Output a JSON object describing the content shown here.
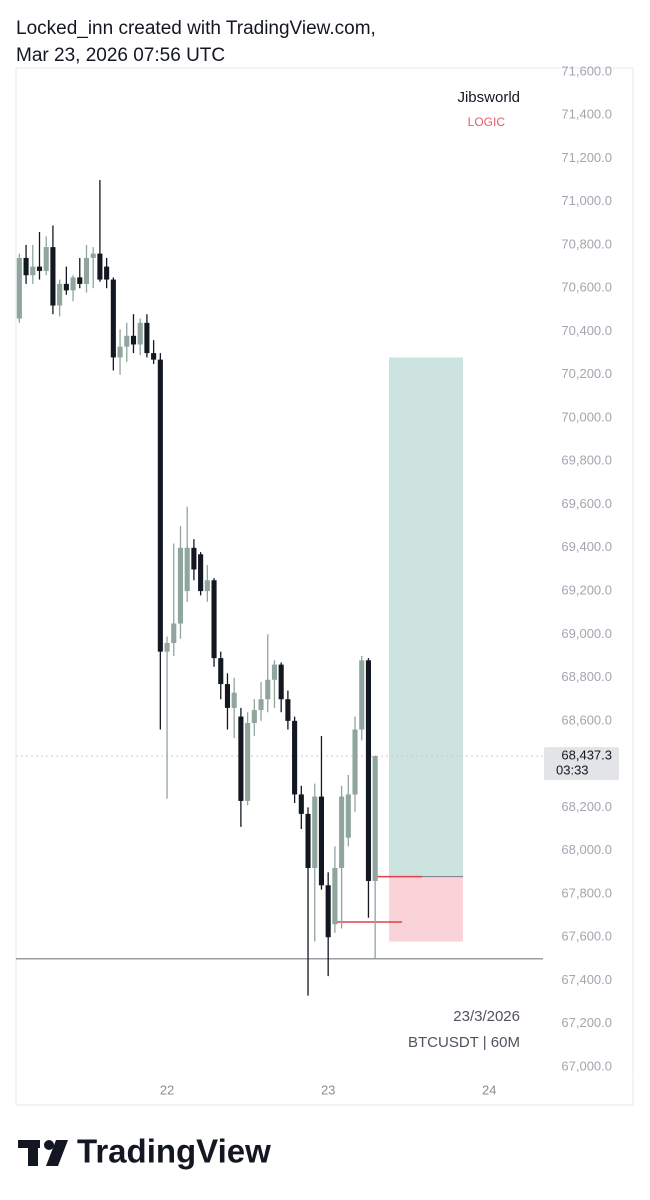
{
  "header": {
    "line1": "Locked_inn created with TradingView.com,",
    "line2": "Mar 23, 2026 07:56 UTC"
  },
  "footer": {
    "brand": "TradingView"
  },
  "chart_data": {
    "type": "candlestick",
    "watermark": {
      "author": "Jibsworld",
      "indicator": "LOGIC",
      "date": "23/3/2026",
      "symbol": "BTCUSDT | 60M"
    },
    "x": [
      -22,
      -21,
      -20,
      -19,
      -18,
      -17,
      -16,
      -15,
      -14,
      -13,
      -12,
      -11,
      -10,
      -9,
      -8,
      -7,
      -6,
      -5,
      -4,
      -3,
      -2,
      -1,
      0,
      1,
      2,
      3,
      4,
      5,
      6,
      7,
      8,
      9,
      10,
      11,
      12,
      13,
      14,
      15,
      16,
      17,
      18,
      19,
      20,
      21,
      22,
      23,
      24,
      25,
      26,
      27,
      28,
      29,
      30,
      31
    ],
    "open": [
      70460,
      70740,
      70660,
      70700,
      70680,
      70790,
      70520,
      70620,
      70590,
      70650,
      70620,
      70740,
      70760,
      70700,
      70640,
      70280,
      70330,
      70380,
      70340,
      70440,
      70300,
      70270,
      68920,
      68960,
      69050,
      69200,
      69400,
      69370,
      69200,
      69250,
      68890,
      68770,
      68660,
      68620,
      68230,
      68590,
      68650,
      68700,
      68790,
      68860,
      68700,
      68600,
      68260,
      68170,
      67920,
      68250,
      67840,
      67660,
      67920,
      68060,
      68260,
      68560,
      68880,
      67860
    ],
    "high": [
      70760,
      70800,
      70800,
      70860,
      70840,
      70890,
      70640,
      70700,
      70660,
      70740,
      70800,
      70790,
      71100,
      70740,
      70650,
      70410,
      70440,
      70480,
      70460,
      70480,
      70360,
      70300,
      68990,
      69420,
      69500,
      69590,
      69440,
      69380,
      69320,
      69260,
      68920,
      68820,
      68800,
      68660,
      68640,
      68700,
      68780,
      69000,
      68880,
      68870,
      68740,
      68620,
      68300,
      68200,
      68310,
      68530,
      67900,
      68020,
      68300,
      68350,
      68620,
      68900,
      68890,
      68440
    ],
    "low": [
      70440,
      70620,
      70620,
      70640,
      70660,
      70480,
      70470,
      70570,
      70540,
      70600,
      70580,
      70600,
      70630,
      70600,
      70220,
      70200,
      70260,
      70300,
      70290,
      70280,
      70250,
      68560,
      68240,
      68900,
      68980,
      69150,
      69250,
      69180,
      69150,
      68850,
      68700,
      68560,
      68520,
      68110,
      68210,
      68530,
      68600,
      68640,
      68660,
      68640,
      68560,
      68220,
      68100,
      67330,
      67580,
      67820,
      67420,
      67620,
      67640,
      68020,
      68180,
      68510,
      67690,
      67500
    ],
    "close": [
      70740,
      70660,
      70700,
      70680,
      70790,
      70520,
      70620,
      70590,
      70650,
      70620,
      70740,
      70760,
      70640,
      70640,
      70280,
      70330,
      70380,
      70340,
      70440,
      70300,
      70270,
      68920,
      68960,
      69050,
      69400,
      69400,
      69300,
      69200,
      69250,
      68890,
      68770,
      68660,
      68730,
      68230,
      68590,
      68650,
      68700,
      68790,
      68860,
      68700,
      68600,
      68260,
      68170,
      67920,
      68250,
      67840,
      67600,
      67920,
      68250,
      68260,
      68560,
      68880,
      67860,
      68437.3
    ],
    "up_color": "#8fa59d",
    "down_color": "#131722",
    "xlim": [
      -22.5,
      56
    ],
    "xticks": [
      {
        "value": 0,
        "label": "22"
      },
      {
        "value": 24,
        "label": "23"
      },
      {
        "value": 48,
        "label": "24"
      }
    ],
    "ylim": [
      66963,
      71618
    ],
    "yticks": [
      {
        "value": 67000,
        "label": "67,000.0"
      },
      {
        "value": 67200,
        "label": "67,200.0"
      },
      {
        "value": 67400,
        "label": "67,400.0"
      },
      {
        "value": 67600,
        "label": "67,600.0"
      },
      {
        "value": 67800,
        "label": "67,800.0"
      },
      {
        "value": 68000,
        "label": "68,000.0"
      },
      {
        "value": 68200,
        "label": "68,200.0"
      },
      {
        "value": 68400,
        "label": "68,400.0"
      },
      {
        "value": 68600,
        "label": "68,600.0"
      },
      {
        "value": 68800,
        "label": "68,800.0"
      },
      {
        "value": 69000,
        "label": "69,000.0"
      },
      {
        "value": 69200,
        "label": "69,200.0"
      },
      {
        "value": 69400,
        "label": "69,400.0"
      },
      {
        "value": 69600,
        "label": "69,600.0"
      },
      {
        "value": 69800,
        "label": "69,800.0"
      },
      {
        "value": 70000,
        "label": "70,000.0"
      },
      {
        "value": 70200,
        "label": "70,200.0"
      },
      {
        "value": 70400,
        "label": "70,400.0"
      },
      {
        "value": 70600,
        "label": "70,600.0"
      },
      {
        "value": 70800,
        "label": "70,800.0"
      },
      {
        "value": 71000,
        "label": "71,000.0"
      },
      {
        "value": 71200,
        "label": "71,200.0"
      },
      {
        "value": 71400,
        "label": "71,400.0"
      },
      {
        "value": 71600,
        "label": "71,600.0"
      }
    ],
    "current_price": {
      "value": 68437.3,
      "label": "68,437.3",
      "countdown": "03:33"
    },
    "support_level": 67500,
    "marker_level": 67670,
    "position": {
      "entry": 67880,
      "target": 70280,
      "stop": 67580,
      "profit_color": "#cde3df",
      "loss_color": "#f9d3d7"
    }
  }
}
